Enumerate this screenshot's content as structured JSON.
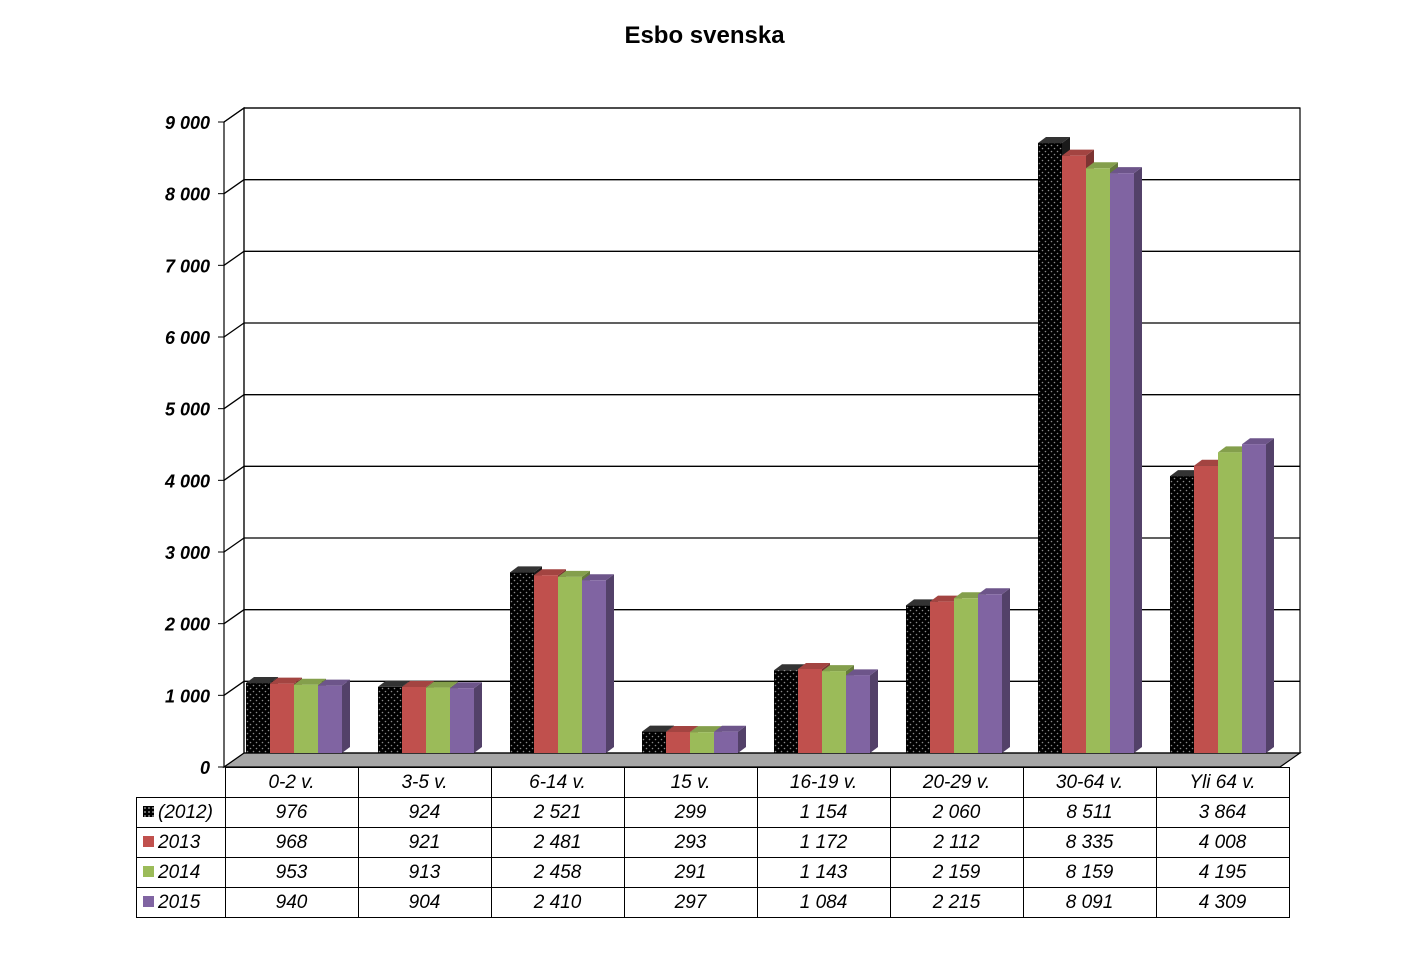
{
  "chart_data": {
    "type": "bar",
    "title": "Esbo svenska",
    "categories": [
      "0-2 v.",
      "3-5 v.",
      "6-14 v.",
      "15 v.",
      "16-19 v.",
      "20-29 v.",
      "30-64 v.",
      "Yli 64 v."
    ],
    "series": [
      {
        "name": "(2012)",
        "color": "#000000",
        "values": [
          976,
          924,
          2521,
          299,
          1154,
          2060,
          8511,
          3864
        ],
        "labels": [
          "976",
          "924",
          "2 521",
          "299",
          "1 154",
          "2 060",
          "8 511",
          "3 864"
        ]
      },
      {
        "name": "2013",
        "color": "#c0504d",
        "values": [
          968,
          921,
          2481,
          293,
          1172,
          2112,
          8335,
          4008
        ],
        "labels": [
          "968",
          "921",
          "2 481",
          "293",
          "1 172",
          "2 112",
          "8 335",
          "4 008"
        ]
      },
      {
        "name": "2014",
        "color": "#9bbb59",
        "values": [
          953,
          913,
          2458,
          291,
          1143,
          2159,
          8159,
          4195
        ],
        "labels": [
          "953",
          "913",
          "2 458",
          "291",
          "1 143",
          "2 159",
          "8 159",
          "4 195"
        ]
      },
      {
        "name": "2015",
        "color": "#8064a2",
        "values": [
          940,
          904,
          2410,
          297,
          1084,
          2215,
          8091,
          4309
        ],
        "labels": [
          "940",
          "904",
          "2 410",
          "297",
          "1 084",
          "2 215",
          "8 091",
          "4 309"
        ]
      }
    ],
    "ylim": [
      0,
      9000
    ],
    "yticks": [
      "0",
      "1 000",
      "2 000",
      "3 000",
      "4 000",
      "5 000",
      "6 000",
      "7 000",
      "8 000",
      "9 000"
    ],
    "grid": true,
    "legend": "data table",
    "style": "3d clustered column"
  }
}
